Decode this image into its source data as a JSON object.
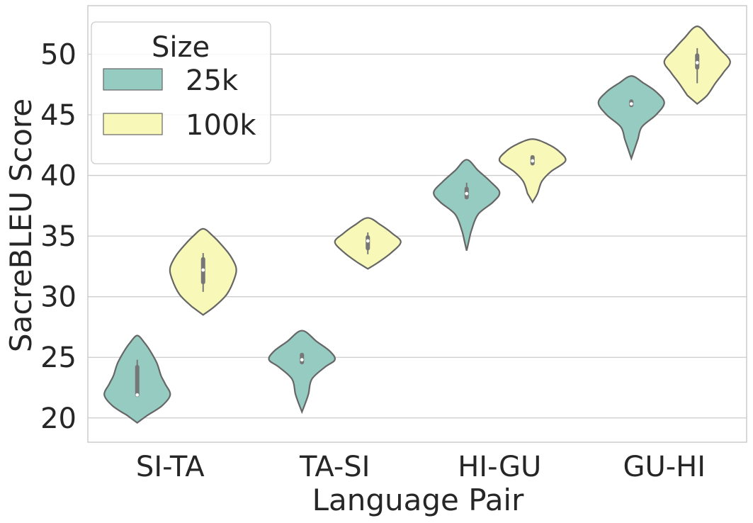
{
  "chart_data": {
    "type": "violin",
    "title": "",
    "xlabel": "Language Pair",
    "ylabel": "SacreBLEU Score",
    "ylim": [
      18,
      54
    ],
    "yticks": [
      20,
      25,
      30,
      35,
      40,
      45,
      50
    ],
    "grid": true,
    "legend": {
      "title": "Size",
      "position": "top-left"
    },
    "categories": [
      "SI-TA",
      "TA-SI",
      "HI-GU",
      "GU-HI"
    ],
    "colors": {
      "25k": "#96cbc1",
      "100k": "#f8f8b9",
      "outline": "#666666"
    },
    "series": [
      {
        "name": "25k",
        "color": "#96cbc1",
        "violins": [
          {
            "category": "SI-TA",
            "min": 19.6,
            "max": 26.8,
            "q1": 21.9,
            "median": 21.9,
            "q3": 24.2,
            "whisker_low": 21.9,
            "whisker_high": 24.8,
            "density": [
              [
                19.6,
                0
              ],
              [
                20.2,
                0.3
              ],
              [
                21,
                0.75
              ],
              [
                21.9,
                1.0
              ],
              [
                22.8,
                0.85
              ],
              [
                23.5,
                0.72
              ],
              [
                24.5,
                0.6
              ],
              [
                25.5,
                0.4
              ],
              [
                26.2,
                0.22
              ],
              [
                26.8,
                0
              ]
            ]
          },
          {
            "category": "TA-SI",
            "min": 20.5,
            "max": 27.2,
            "q1": 24.6,
            "median": 24.8,
            "q3": 25.2,
            "whisker_low": 24.5,
            "whisker_high": 25.3,
            "density": [
              [
                20.5,
                0
              ],
              [
                21.2,
                0.1
              ],
              [
                22,
                0.2
              ],
              [
                23.2,
                0.3
              ],
              [
                24.2,
                0.7
              ],
              [
                24.8,
                1.0
              ],
              [
                25.5,
                0.85
              ],
              [
                26.3,
                0.45
              ],
              [
                27.2,
                0
              ]
            ]
          },
          {
            "category": "HI-GU",
            "min": 33.8,
            "max": 41.3,
            "q1": 38.2,
            "median": 38.5,
            "q3": 38.9,
            "whisker_low": 38.2,
            "whisker_high": 39.4,
            "density": [
              [
                33.8,
                0
              ],
              [
                34.5,
                0.06
              ],
              [
                35.5,
                0.15
              ],
              [
                36.8,
                0.35
              ],
              [
                37.8,
                0.8
              ],
              [
                38.6,
                1.0
              ],
              [
                39.5,
                0.72
              ],
              [
                40.4,
                0.35
              ],
              [
                41.3,
                0
              ]
            ]
          },
          {
            "category": "GU-HI",
            "min": 41.4,
            "max": 48.2,
            "q1": 45.8,
            "median": 45.9,
            "q3": 46.1,
            "whisker_low": 45.8,
            "whisker_high": 46.1,
            "density": [
              [
                41.4,
                0
              ],
              [
                42.2,
                0.1
              ],
              [
                43,
                0.2
              ],
              [
                44,
                0.32
              ],
              [
                45,
                0.75
              ],
              [
                46,
                1.0
              ],
              [
                46.9,
                0.75
              ],
              [
                47.6,
                0.38
              ],
              [
                48.2,
                0
              ]
            ]
          }
        ]
      },
      {
        "name": "100k",
        "color": "#f8f8b9",
        "violins": [
          {
            "category": "SI-TA",
            "min": 28.5,
            "max": 35.6,
            "q1": 31.2,
            "median": 32.2,
            "q3": 33.1,
            "whisker_low": 30.4,
            "whisker_high": 33.6,
            "density": [
              [
                28.5,
                0
              ],
              [
                29.2,
                0.35
              ],
              [
                30.2,
                0.72
              ],
              [
                31.5,
                0.95
              ],
              [
                32.4,
                1.0
              ],
              [
                33.4,
                0.82
              ],
              [
                34.3,
                0.55
              ],
              [
                35,
                0.3
              ],
              [
                35.6,
                0
              ]
            ]
          },
          {
            "category": "TA-SI",
            "min": 32.3,
            "max": 36.5,
            "q1": 34.0,
            "median": 34.6,
            "q3": 34.9,
            "whisker_low": 33.5,
            "whisker_high": 35.3,
            "density": [
              [
                32.3,
                0
              ],
              [
                32.8,
                0.3
              ],
              [
                33.6,
                0.7
              ],
              [
                34.5,
                1.0
              ],
              [
                35.2,
                0.75
              ],
              [
                35.9,
                0.4
              ],
              [
                36.5,
                0
              ]
            ]
          },
          {
            "category": "HI-GU",
            "min": 37.8,
            "max": 43.0,
            "q1": 41.0,
            "median": 41.2,
            "q3": 41.5,
            "whisker_low": 41.0,
            "whisker_high": 41.6,
            "density": [
              [
                37.8,
                0
              ],
              [
                38.5,
                0.15
              ],
              [
                39.5,
                0.28
              ],
              [
                40.3,
                0.55
              ],
              [
                41.2,
                1.0
              ],
              [
                42,
                0.8
              ],
              [
                42.6,
                0.45
              ],
              [
                43,
                0
              ]
            ]
          },
          {
            "category": "GU-HI",
            "min": 45.9,
            "max": 52.3,
            "q1": 48.9,
            "median": 49.3,
            "q3": 49.9,
            "whisker_low": 47.6,
            "whisker_high": 50.5,
            "density": [
              [
                45.9,
                0
              ],
              [
                46.6,
                0.3
              ],
              [
                47.6,
                0.55
              ],
              [
                48.5,
                0.8
              ],
              [
                49.4,
                1.0
              ],
              [
                50.4,
                0.7
              ],
              [
                51.3,
                0.4
              ],
              [
                52.3,
                0
              ]
            ]
          }
        ]
      }
    ]
  }
}
